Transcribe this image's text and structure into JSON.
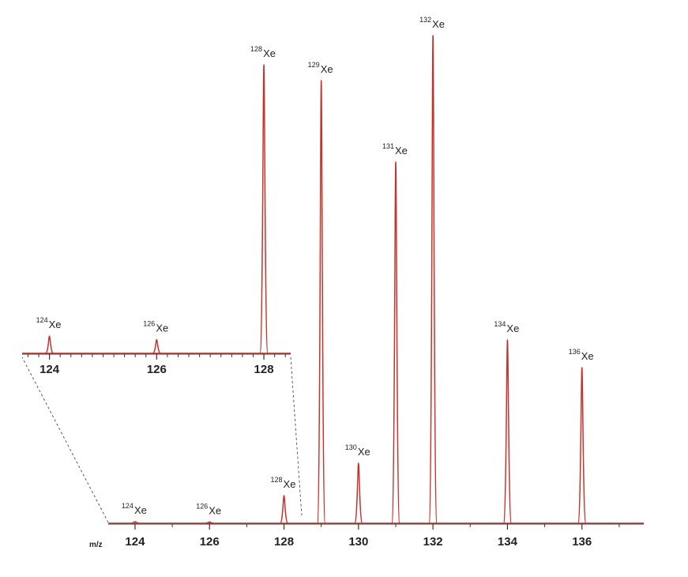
{
  "chart_data": [
    {
      "type": "spectrum",
      "xlabel": "m/z",
      "color": "#c8322a",
      "x": [
        124,
        126,
        128,
        129,
        130,
        131,
        132,
        134,
        136
      ],
      "values": [
        0.34,
        0.27,
        5.7,
        90.8,
        12.3,
        74.1,
        100,
        37.6,
        31.9
      ],
      "peak_labels": [
        {
          "mass": "124",
          "symbol": "Xe"
        },
        {
          "mass": "126",
          "symbol": "Xe"
        },
        {
          "mass": "128",
          "symbol": "Xe"
        },
        {
          "mass": "129",
          "symbol": "Xe"
        },
        {
          "mass": "130",
          "symbol": "Xe"
        },
        {
          "mass": "131",
          "symbol": "Xe"
        },
        {
          "mass": "132",
          "symbol": "Xe"
        },
        {
          "mass": "134",
          "symbol": "Xe"
        },
        {
          "mass": "136",
          "symbol": "Xe"
        }
      ],
      "xlim": [
        123.28,
        137.66
      ],
      "ylim": [
        0,
        100
      ],
      "xticks": [
        124,
        126,
        128,
        130,
        132,
        134,
        136
      ],
      "xminorticks": [
        125,
        127,
        129,
        131,
        133,
        135,
        137
      ]
    },
    {
      "type": "spectrum",
      "color": "#c8322a",
      "x": [
        124,
        126,
        128
      ],
      "values": [
        0.34,
        0.27,
        5.7
      ],
      "peak_labels": [
        {
          "mass": "124",
          "symbol": "Xe"
        },
        {
          "mass": "126",
          "symbol": "Xe"
        },
        {
          "mass": "128",
          "symbol": "Xe"
        }
      ],
      "xlim": [
        123.49,
        128.5
      ],
      "ylim": [
        0,
        5.7
      ],
      "xticks": [
        124,
        126,
        128
      ],
      "xminorticks": [
        123.6,
        123.8,
        124.2,
        124.4,
        124.6,
        124.8,
        125,
        125.2,
        125.4,
        125.6,
        125.8,
        126.2,
        126.4,
        126.6,
        126.8,
        127,
        127.2,
        127.4,
        127.6,
        127.8,
        128.2,
        128.4
      ]
    }
  ]
}
